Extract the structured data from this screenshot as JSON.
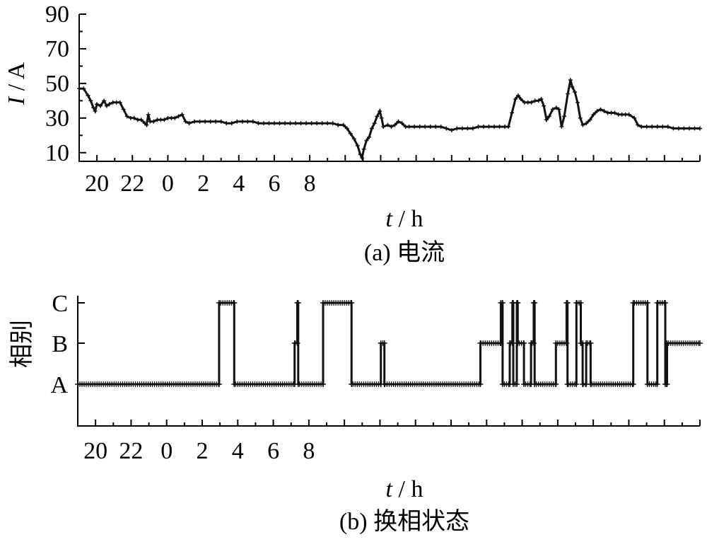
{
  "chart_data": [
    {
      "type": "line",
      "caption": "(a)  电流",
      "ylabel": {
        "var": "I",
        "unit": " / A"
      },
      "xlabel": {
        "var": "t",
        "unit": " / h"
      },
      "x_tick_labels": [
        "20",
        "22",
        "0",
        "2",
        "4",
        "6",
        "8"
      ],
      "y_tick_labels": [
        "10",
        "30",
        "50",
        "70",
        "90"
      ],
      "yticks": [
        10,
        30,
        50,
        70,
        90
      ],
      "xlim_hours_elapsed": [
        0,
        35
      ],
      "ylim": [
        5,
        90
      ],
      "x_start_clock_hour": 19,
      "series": [
        {
          "points": [
            [
              0,
              47
            ],
            [
              0.25,
              47
            ],
            [
              0.5,
              43
            ],
            [
              0.65,
              40
            ],
            [
              0.8,
              36
            ],
            [
              0.9,
              34
            ],
            [
              1.0,
              38
            ],
            [
              1.2,
              37
            ],
            [
              1.4,
              40
            ],
            [
              1.55,
              37
            ],
            [
              1.7,
              38
            ],
            [
              1.9,
              39
            ],
            [
              2.1,
              39
            ],
            [
              2.3,
              39
            ],
            [
              2.5,
              35
            ],
            [
              2.7,
              31
            ],
            [
              2.9,
              30
            ],
            [
              3.1,
              30
            ],
            [
              3.3,
              29
            ],
            [
              3.5,
              29
            ],
            [
              3.7,
              27
            ],
            [
              3.8,
              26
            ],
            [
              3.9,
              32
            ],
            [
              4.0,
              28
            ],
            [
              4.2,
              28
            ],
            [
              4.4,
              29
            ],
            [
              4.6,
              29
            ],
            [
              4.8,
              29
            ],
            [
              5.0,
              30
            ],
            [
              5.2,
              30
            ],
            [
              5.4,
              30
            ],
            [
              5.6,
              31
            ],
            [
              5.8,
              32
            ],
            [
              6.0,
              28
            ],
            [
              6.2,
              27
            ],
            [
              6.5,
              28
            ],
            [
              6.8,
              28
            ],
            [
              7.1,
              28
            ],
            [
              7.4,
              28
            ],
            [
              7.7,
              28
            ],
            [
              8.0,
              28
            ],
            [
              8.3,
              27
            ],
            [
              8.6,
              27
            ],
            [
              8.9,
              28
            ],
            [
              9.2,
              28
            ],
            [
              9.5,
              28
            ],
            [
              9.8,
              28
            ],
            [
              10.1,
              27
            ],
            [
              10.4,
              27
            ],
            [
              10.7,
              27
            ],
            [
              11.0,
              27
            ],
            [
              11.3,
              27
            ],
            [
              11.6,
              27
            ],
            [
              11.9,
              27
            ],
            [
              12.2,
              27
            ],
            [
              12.5,
              27
            ],
            [
              12.8,
              27
            ],
            [
              13.1,
              27
            ],
            [
              13.4,
              27
            ],
            [
              13.7,
              27
            ],
            [
              14.0,
              27
            ],
            [
              14.3,
              27
            ],
            [
              14.6,
              26
            ],
            [
              14.9,
              26
            ],
            [
              15.1,
              24
            ],
            [
              15.3,
              21
            ],
            [
              15.5,
              18
            ],
            [
              15.7,
              14
            ],
            [
              15.85,
              9
            ],
            [
              15.95,
              7
            ],
            [
              16.05,
              12
            ],
            [
              16.2,
              17
            ],
            [
              16.35,
              19
            ],
            [
              16.5,
              24
            ],
            [
              16.65,
              27
            ],
            [
              16.8,
              31
            ],
            [
              16.95,
              34
            ],
            [
              17.05,
              30
            ],
            [
              17.15,
              25
            ],
            [
              17.4,
              26
            ],
            [
              17.6,
              25
            ],
            [
              17.8,
              26
            ],
            [
              18.0,
              28
            ],
            [
              18.2,
              27
            ],
            [
              18.4,
              25
            ],
            [
              18.6,
              25
            ],
            [
              18.9,
              25
            ],
            [
              19.2,
              25
            ],
            [
              19.5,
              25
            ],
            [
              19.8,
              25
            ],
            [
              20.1,
              25
            ],
            [
              20.4,
              25
            ],
            [
              20.7,
              24
            ],
            [
              21.0,
              23
            ],
            [
              21.3,
              24
            ],
            [
              21.6,
              24
            ],
            [
              21.9,
              24
            ],
            [
              22.2,
              24
            ],
            [
              22.5,
              25
            ],
            [
              22.8,
              25
            ],
            [
              23.1,
              25
            ],
            [
              23.4,
              25
            ],
            [
              23.7,
              25
            ],
            [
              24.0,
              25
            ],
            [
              24.2,
              25
            ],
            [
              24.4,
              33
            ],
            [
              24.6,
              41
            ],
            [
              24.75,
              43
            ],
            [
              24.9,
              41
            ],
            [
              25.1,
              39
            ],
            [
              25.3,
              39
            ],
            [
              25.5,
              39
            ],
            [
              25.7,
              40
            ],
            [
              25.9,
              40
            ],
            [
              26.05,
              41
            ],
            [
              26.2,
              37
            ],
            [
              26.35,
              29
            ],
            [
              26.5,
              31
            ],
            [
              26.7,
              35
            ],
            [
              26.9,
              36
            ],
            [
              27.05,
              35
            ],
            [
              27.2,
              25
            ],
            [
              27.35,
              31
            ],
            [
              27.55,
              44
            ],
            [
              27.7,
              52
            ],
            [
              27.8,
              48
            ],
            [
              27.95,
              45
            ],
            [
              28.1,
              39
            ],
            [
              28.25,
              30
            ],
            [
              28.4,
              26
            ],
            [
              28.6,
              27
            ],
            [
              28.8,
              29
            ],
            [
              29.0,
              32
            ],
            [
              29.2,
              34
            ],
            [
              29.4,
              35
            ],
            [
              29.6,
              34
            ],
            [
              29.8,
              33
            ],
            [
              30.0,
              33
            ],
            [
              30.2,
              33
            ],
            [
              30.4,
              32
            ],
            [
              30.6,
              32
            ],
            [
              30.8,
              32
            ],
            [
              31.0,
              32
            ],
            [
              31.3,
              30
            ],
            [
              31.5,
              26
            ],
            [
              31.7,
              25
            ],
            [
              32.0,
              25
            ],
            [
              32.3,
              25
            ],
            [
              32.6,
              25
            ],
            [
              32.9,
              25
            ],
            [
              33.2,
              25
            ],
            [
              33.5,
              24
            ],
            [
              33.8,
              24
            ],
            [
              34.1,
              24
            ],
            [
              34.4,
              24
            ],
            [
              34.7,
              24
            ],
            [
              35.0,
              24
            ]
          ]
        }
      ]
    },
    {
      "type": "line",
      "caption": "(b)  换相状态",
      "ylabel": {
        "text": "相别"
      },
      "xlabel": {
        "var": "t",
        "unit": " / h"
      },
      "x_tick_labels": [
        "20",
        "22",
        "0",
        "2",
        "4",
        "6",
        "8"
      ],
      "y_categories": [
        "A",
        "B",
        "C"
      ],
      "xlim_hours_elapsed": [
        0,
        35
      ],
      "x_start_clock_hour": 19,
      "series": [
        {
          "points": [
            [
              0,
              "A"
            ],
            [
              7.95,
              "A"
            ],
            [
              7.95,
              "C"
            ],
            [
              8.8,
              "C"
            ],
            [
              8.8,
              "A"
            ],
            [
              12.2,
              "A"
            ],
            [
              12.2,
              "B"
            ],
            [
              12.35,
              "B"
            ],
            [
              12.35,
              "C"
            ],
            [
              12.4,
              "C"
            ],
            [
              12.4,
              "A"
            ],
            [
              13.8,
              "A"
            ],
            [
              13.8,
              "C"
            ],
            [
              15.4,
              "C"
            ],
            [
              15.4,
              "A"
            ],
            [
              17.05,
              "A"
            ],
            [
              17.05,
              "B"
            ],
            [
              17.25,
              "B"
            ],
            [
              17.25,
              "A"
            ],
            [
              22.65,
              "A"
            ],
            [
              22.65,
              "B"
            ],
            [
              23.8,
              "B"
            ],
            [
              23.8,
              "C"
            ],
            [
              23.9,
              "C"
            ],
            [
              23.9,
              "A"
            ],
            [
              24.3,
              "A"
            ],
            [
              24.3,
              "B"
            ],
            [
              24.45,
              "B"
            ],
            [
              24.45,
              "C"
            ],
            [
              24.5,
              "C"
            ],
            [
              24.5,
              "A"
            ],
            [
              24.7,
              "A"
            ],
            [
              24.7,
              "C"
            ],
            [
              24.75,
              "C"
            ],
            [
              24.75,
              "B"
            ],
            [
              25.1,
              "B"
            ],
            [
              25.1,
              "A"
            ],
            [
              25.5,
              "A"
            ],
            [
              25.5,
              "B"
            ],
            [
              25.65,
              "B"
            ],
            [
              25.65,
              "C"
            ],
            [
              25.7,
              "C"
            ],
            [
              25.7,
              "A"
            ],
            [
              26.9,
              "A"
            ],
            [
              26.9,
              "B"
            ],
            [
              27.5,
              "B"
            ],
            [
              27.5,
              "C"
            ],
            [
              27.55,
              "C"
            ],
            [
              27.55,
              "A"
            ],
            [
              28.05,
              "A"
            ],
            [
              28.05,
              "C"
            ],
            [
              28.3,
              "C"
            ],
            [
              28.3,
              "B"
            ],
            [
              28.4,
              "B"
            ],
            [
              28.4,
              "A"
            ],
            [
              28.6,
              "A"
            ],
            [
              28.6,
              "B"
            ],
            [
              28.85,
              "B"
            ],
            [
              28.85,
              "A"
            ],
            [
              31.25,
              "A"
            ],
            [
              31.25,
              "C"
            ],
            [
              32.05,
              "C"
            ],
            [
              32.05,
              "A"
            ],
            [
              32.6,
              "A"
            ],
            [
              32.6,
              "C"
            ],
            [
              33.05,
              "C"
            ],
            [
              33.05,
              "A"
            ],
            [
              33.15,
              "A"
            ],
            [
              33.15,
              "B"
            ],
            [
              35.0,
              "B"
            ]
          ]
        }
      ]
    }
  ]
}
